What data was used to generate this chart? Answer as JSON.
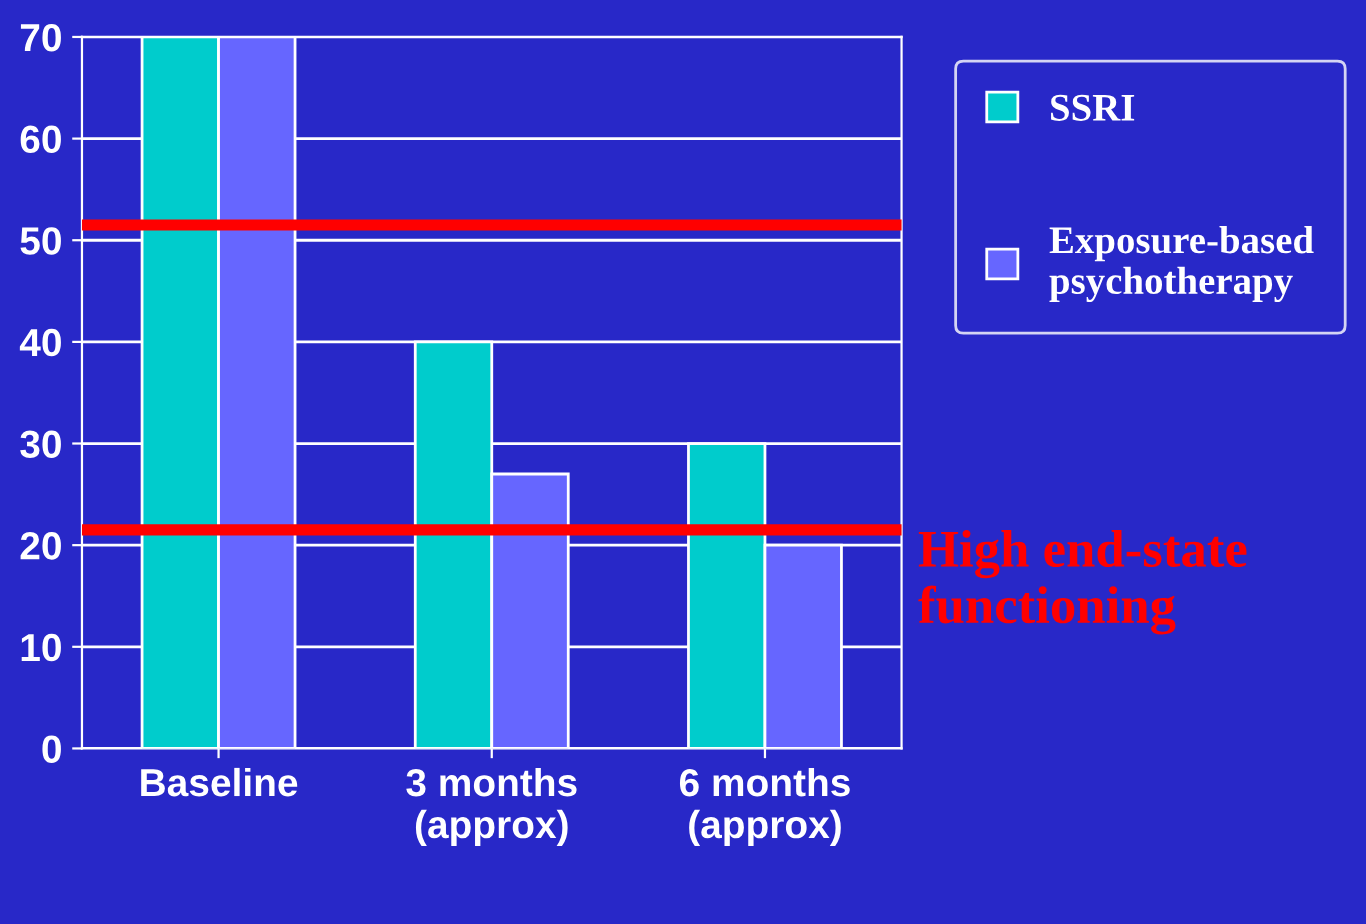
{
  "chart_data": {
    "type": "bar",
    "categories": [
      "Baseline",
      "3 months\n(approx)",
      "6 months\n(approx)"
    ],
    "series": [
      {
        "name": "SSRI",
        "color": "#00cccc",
        "values": [
          70,
          40,
          30
        ]
      },
      {
        "name": "Exposure-based\npsychotherapy",
        "color": "#6666ff",
        "values": [
          70,
          27,
          20
        ]
      }
    ],
    "ylim": [
      0,
      70
    ],
    "yticks": [
      0,
      10,
      20,
      30,
      40,
      50,
      60,
      70
    ],
    "grid": "y",
    "legend": "right",
    "ref_lines": [
      {
        "axis": "y",
        "value": 51.5,
        "label": null,
        "color": "#ff0000"
      },
      {
        "axis": "y",
        "value": 21.5,
        "label": "High end-state functioning",
        "color": "#ff0000"
      }
    ]
  }
}
